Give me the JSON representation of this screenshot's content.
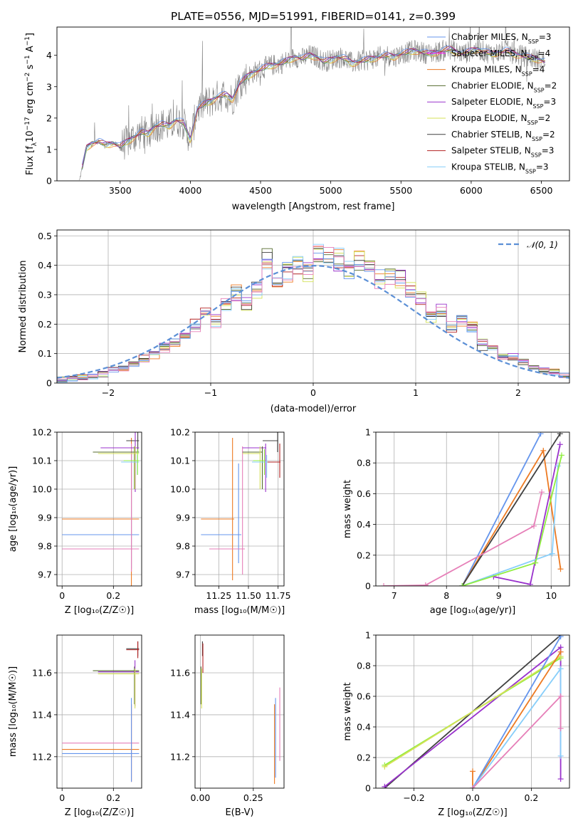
{
  "figure": {
    "title": "PLATE=0556, MJD=51991, FIBERID=0141, z=0.399",
    "series_colors": {
      "Chabrier MILES": "#6495ed",
      "Salpeter MILES": "#ff00ff",
      "Kroupa MILES": "#ed7a22",
      "Chabrier ELODIE": "#556b2f",
      "Salpeter ELODIE": "#9932cc",
      "Kroupa ELODIE": "#d4e157",
      "Chabrier STELIB": "#404040",
      "Salpeter STELIB": "#b22222",
      "Kroupa STELIB": "#87cefa",
      "data": "#808080",
      "gaussian": "#5b8fd6",
      "pink_extra": "#e67fb8",
      "lime_extra": "#90ee40"
    }
  },
  "chart_data": [
    {
      "id": "spectrum",
      "type": "line",
      "title": "PLATE=0556, MJD=51991, FIBERID=0141, z=0.399",
      "xlabel": "wavelength [Angstrom, rest frame]",
      "ylabel": "Flux [f_λ 10^-17 erg cm^-2 s^-1 A^-1]",
      "xlim": [
        3050,
        6700
      ],
      "ylim": [
        0,
        4.9
      ],
      "xticks": [
        3500,
        4000,
        4500,
        5000,
        5500,
        6000,
        6500
      ],
      "yticks": [
        0,
        1,
        2,
        3,
        4
      ],
      "grid": false,
      "legend_position": "top-right",
      "legend": [
        {
          "name": "Chabrier MILES",
          "nssp": "3"
        },
        {
          "name": "Salpeter MILES",
          "nssp": "4"
        },
        {
          "name": "Kroupa MILES",
          "nssp": "4"
        },
        {
          "name": "Chabrier ELODIE",
          "nssp": "2"
        },
        {
          "name": "Salpeter ELODIE",
          "nssp": "3"
        },
        {
          "name": "Kroupa ELODIE",
          "nssp": "2"
        },
        {
          "name": "Chabrier STELIB",
          "nssp": "2"
        },
        {
          "name": "Salpeter STELIB",
          "nssp": "3"
        },
        {
          "name": "Kroupa STELIB",
          "nssp": "3"
        }
      ],
      "continuum_x": [
        3210,
        3260,
        3300,
        3350,
        3400,
        3450,
        3500,
        3550,
        3600,
        3650,
        3700,
        3750,
        3800,
        3850,
        3900,
        3950,
        4000,
        4050,
        4100,
        4150,
        4200,
        4250,
        4300,
        4350,
        4400,
        4450,
        4500,
        4550,
        4600,
        4650,
        4700,
        4750,
        4800,
        4850,
        4900,
        4950,
        5000,
        5050,
        5100,
        5150,
        5200,
        5250,
        5300,
        5350,
        5400,
        5450,
        5500,
        5550,
        5600,
        5650,
        5700,
        5750,
        5800,
        5850,
        5900,
        5950,
        6000,
        6050,
        6100,
        6150,
        6200,
        6250,
        6300,
        6350,
        6400,
        6450,
        6500,
        6530
      ],
      "continuum_y": [
        0.0,
        1.05,
        1.2,
        1.25,
        1.15,
        1.2,
        1.1,
        1.25,
        1.4,
        1.55,
        1.5,
        1.75,
        1.8,
        1.75,
        1.95,
        1.85,
        1.3,
        2.3,
        2.45,
        2.55,
        2.7,
        2.75,
        2.6,
        3.1,
        3.3,
        3.45,
        3.55,
        3.65,
        3.7,
        3.75,
        3.85,
        3.95,
        3.9,
        4.0,
        3.95,
        3.8,
        3.85,
        3.95,
        3.9,
        3.75,
        3.8,
        3.85,
        3.9,
        3.95,
        4.0,
        3.95,
        4.05,
        4.1,
        4.15,
        4.1,
        4.05,
        4.1,
        4.15,
        4.2,
        4.1,
        4.05,
        4.15,
        4.2,
        4.1,
        4.05,
        4.1,
        4.15,
        4.05,
        4.0,
        3.95,
        3.9,
        3.85,
        3.8
      ]
    },
    {
      "id": "residuals",
      "type": "histogram",
      "xlabel": "(data-model)/error",
      "ylabel": "Normed distribution",
      "xlim": [
        -2.5,
        2.5
      ],
      "ylim": [
        0,
        0.52
      ],
      "xticks": [
        -2,
        -1,
        0,
        1,
        2
      ],
      "yticks": [
        0.0,
        0.1,
        0.2,
        0.3,
        0.4,
        0.5
      ],
      "grid": true,
      "legend_position": "top-right",
      "legend": [
        {
          "name": "𝒩(0, 1)",
          "style": "dashed"
        }
      ],
      "bin_edges": [
        -2.5,
        -2.4,
        -2.3,
        -2.2,
        -2.1,
        -2.0,
        -1.9,
        -1.8,
        -1.7,
        -1.6,
        -1.5,
        -1.4,
        -1.3,
        -1.2,
        -1.1,
        -1.0,
        -0.9,
        -0.8,
        -0.7,
        -0.6,
        -0.5,
        -0.4,
        -0.3,
        -0.2,
        -0.1,
        0.0,
        0.1,
        0.2,
        0.3,
        0.4,
        0.5,
        0.6,
        0.7,
        0.8,
        0.9,
        1.0,
        1.1,
        1.2,
        1.3,
        1.4,
        1.5,
        1.6,
        1.7,
        1.8,
        1.9,
        2.0,
        2.1,
        2.2,
        2.3,
        2.4,
        2.5
      ],
      "base_density": [
        0.012,
        0.015,
        0.02,
        0.025,
        0.03,
        0.045,
        0.05,
        0.065,
        0.08,
        0.1,
        0.12,
        0.14,
        0.16,
        0.2,
        0.24,
        0.21,
        0.26,
        0.3,
        0.26,
        0.32,
        0.42,
        0.34,
        0.38,
        0.4,
        0.37,
        0.45,
        0.43,
        0.42,
        0.38,
        0.41,
        0.39,
        0.35,
        0.37,
        0.35,
        0.31,
        0.28,
        0.23,
        0.24,
        0.19,
        0.21,
        0.19,
        0.13,
        0.12,
        0.09,
        0.09,
        0.07,
        0.055,
        0.045,
        0.035,
        0.025
      ],
      "curve": {
        "type": "normal",
        "mean": 0,
        "sigma": 1
      }
    },
    {
      "id": "age_vs_Z",
      "type": "errorbar",
      "xlabel": "Z [log₁₀(Z/Z☉)]",
      "ylabel": "age  [log₁₀(age/yr)]",
      "xlim": [
        -0.02,
        0.31
      ],
      "ylim": [
        9.66,
        10.2
      ],
      "xticks": [
        0.0,
        0.2
      ],
      "yticks": [
        9.7,
        9.8,
        9.9,
        10.0,
        10.1,
        10.2
      ],
      "ytick_labels": [
        "9.7",
        "9.8",
        "9.9",
        "10.0",
        "10.1",
        "10.2"
      ],
      "grid": true,
      "points": [
        {
          "series": "Kroupa MILES",
          "x": 0.0,
          "xerr": [
            0.0,
            0.3
          ],
          "y": 9.895,
          "yerr": [
            9.66,
            10.18
          ]
        },
        {
          "series": "Chabrier MILES",
          "x": 0.0,
          "xerr": [
            0.0,
            0.3
          ],
          "y": 9.84,
          "yerr": [
            9.72,
            10.15
          ]
        },
        {
          "series": "pink",
          "x": 0.0,
          "xerr": [
            0.0,
            0.3
          ],
          "y": 9.79,
          "yerr": [
            9.71,
            10.16
          ]
        },
        {
          "series": "Chabrier STELIB",
          "x": 0.25,
          "xerr": [
            0.25,
            0.3
          ],
          "y": 10.17,
          "yerr": [
            10.13,
            10.2
          ]
        },
        {
          "series": "Salpeter ELODIE",
          "x": 0.15,
          "xerr": [
            0.15,
            0.3
          ],
          "y": 10.145,
          "yerr": [
            9.99,
            10.2
          ]
        },
        {
          "series": "Chabrier ELODIE",
          "x": 0.12,
          "xerr": [
            0.12,
            0.3
          ],
          "y": 10.13,
          "yerr": [
            10.0,
            10.15
          ]
        },
        {
          "series": "Kroupa ELODIE",
          "x": 0.14,
          "xerr": [
            0.14,
            0.3
          ],
          "y": 10.125,
          "yerr": [
            10.0,
            10.15
          ]
        },
        {
          "series": "Kroupa STELIB",
          "x": 0.23,
          "xerr": [
            0.23,
            0.3
          ],
          "y": 10.095,
          "yerr": [
            10.05,
            10.12
          ]
        },
        {
          "series": "lime",
          "x": 0.24,
          "xerr": [
            0.24,
            0.3
          ],
          "y": 10.1,
          "yerr": [
            10.05,
            10.14
          ]
        }
      ]
    },
    {
      "id": "age_vs_mass",
      "type": "errorbar",
      "xlabel": "mass [log₁₀(M/M☉)]",
      "ylabel": "",
      "xlim": [
        11.05,
        11.8
      ],
      "ylim": [
        9.66,
        10.2
      ],
      "xticks": [
        11.25,
        11.5,
        11.75
      ],
      "xtick_labels": [
        "11.25",
        "11.50",
        "11.75"
      ],
      "yticks": [
        9.7,
        9.8,
        9.9,
        10.0,
        10.1,
        10.2
      ],
      "ytick_labels": [
        "9.7",
        "9.8",
        "9.9",
        "10.0",
        "10.1",
        "10.2"
      ],
      "grid": true,
      "points": [
        {
          "series": "Kroupa MILES",
          "x": 11.24,
          "xerr": [
            11.1,
            11.38
          ],
          "y": 9.895,
          "yerr": [
            9.68,
            10.18
          ]
        },
        {
          "series": "Chabrier MILES",
          "x": 11.21,
          "xerr": [
            11.1,
            11.44
          ],
          "y": 9.84,
          "yerr": [
            9.74,
            10.09
          ]
        },
        {
          "series": "pink",
          "x": 11.27,
          "xerr": [
            11.17,
            11.47
          ],
          "y": 9.79,
          "yerr": [
            9.7,
            10.15
          ]
        },
        {
          "series": "Chabrier STELIB",
          "x": 11.71,
          "xerr": [
            11.62,
            11.75
          ],
          "y": 10.17,
          "yerr": [
            10.13,
            10.2
          ]
        },
        {
          "series": "Salpeter STELIB",
          "x": 11.71,
          "xerr": [
            11.65,
            11.77
          ],
          "y": 10.095,
          "yerr": [
            10.04,
            10.16
          ]
        },
        {
          "series": "Salpeter ELODIE",
          "x": 11.6,
          "xerr": [
            11.45,
            11.65
          ],
          "y": 10.145,
          "yerr": [
            9.99,
            10.16
          ]
        },
        {
          "series": "Chabrier ELODIE",
          "x": 11.59,
          "xerr": [
            11.45,
            11.62
          ],
          "y": 10.13,
          "yerr": [
            10.0,
            10.15
          ]
        },
        {
          "series": "Kroupa ELODIE",
          "x": 11.58,
          "xerr": [
            11.45,
            11.6
          ],
          "y": 10.125,
          "yerr": [
            10.0,
            10.15
          ]
        },
        {
          "series": "Kroupa STELIB",
          "x": 11.6,
          "xerr": [
            11.53,
            11.66
          ],
          "y": 10.095,
          "yerr": [
            10.04,
            10.12
          ]
        },
        {
          "series": "lime",
          "x": 11.59,
          "xerr": [
            11.54,
            11.64
          ],
          "y": 10.1,
          "yerr": [
            10.05,
            10.14
          ]
        }
      ]
    },
    {
      "id": "weight_vs_age",
      "type": "line",
      "xlabel": "age  [log₁₀(age/yr)]",
      "ylabel": "mass weight",
      "xlim": [
        6.65,
        10.35
      ],
      "ylim": [
        0,
        1.0
      ],
      "xticks": [
        7,
        8,
        9,
        10
      ],
      "yticks": [
        0.0,
        0.2,
        0.4,
        0.6,
        0.8,
        1.0
      ],
      "grid": true,
      "series": [
        {
          "name": "Chabrier MILES",
          "x": [
            8.3,
            9.8
          ],
          "y": [
            0.0,
            0.99
          ]
        },
        {
          "name": "Kroupa MILES",
          "x": [
            8.3,
            9.85,
            10.18
          ],
          "y": [
            0.0,
            0.88,
            0.11
          ]
        },
        {
          "name": "Chabrier STELIB",
          "x": [
            8.3,
            10.17
          ],
          "y": [
            0.0,
            0.99
          ]
        },
        {
          "name": "Salpeter ELODIE",
          "x": [
            8.9,
            9.6,
            10.17
          ],
          "y": [
            0.06,
            0.01,
            0.92
          ]
        },
        {
          "name": "pink",
          "x": [
            6.8,
            7.6,
            9.67,
            9.82
          ],
          "y": [
            0.0,
            0.005,
            0.39,
            0.61
          ]
        },
        {
          "name": "Kroupa STELIB",
          "x": [
            8.3,
            10.02,
            10.13
          ],
          "y": [
            0.0,
            0.21,
            0.78
          ]
        },
        {
          "name": "lime",
          "x": [
            8.3,
            9.7,
            10.2
          ],
          "y": [
            0.0,
            0.15,
            0.85
          ]
        }
      ]
    },
    {
      "id": "mass_vs_Z",
      "type": "errorbar",
      "xlabel": "Z [log₁₀(Z/Z☉)]",
      "ylabel": "mass [log₁₀(M/M☉)]",
      "xlim": [
        -0.02,
        0.31
      ],
      "ylim": [
        11.05,
        11.78
      ],
      "xticks": [
        0.0,
        0.2
      ],
      "yticks": [
        11.2,
        11.4,
        11.6
      ],
      "grid": true,
      "points": [
        {
          "series": "Chabrier STELIB",
          "x": 0.25,
          "xerr": [
            0.25,
            0.3
          ],
          "y": 11.715,
          "yerr": [
            11.68,
            11.75
          ]
        },
        {
          "series": "Salpeter STELIB",
          "x": 0.25,
          "xerr": [
            0.25,
            0.3
          ],
          "y": 11.71,
          "yerr": [
            11.67,
            11.75
          ]
        },
        {
          "series": "Chabrier ELODIE",
          "x": 0.12,
          "xerr": [
            0.12,
            0.3
          ],
          "y": 11.61,
          "yerr": [
            11.45,
            11.63
          ]
        },
        {
          "series": "Salpeter ELODIE",
          "x": 0.14,
          "xerr": [
            0.14,
            0.3
          ],
          "y": 11.605,
          "yerr": [
            11.44,
            11.66
          ]
        },
        {
          "series": "Kroupa ELODIE",
          "x": 0.14,
          "xerr": [
            0.14,
            0.3
          ],
          "y": 11.595,
          "yerr": [
            11.43,
            11.62
          ]
        },
        {
          "series": "pink",
          "x": 0.0,
          "xerr": [
            0.0,
            0.3
          ],
          "y": 11.265,
          "yerr": [
            11.08,
            11.45
          ]
        },
        {
          "series": "Kroupa MILES",
          "x": 0.0,
          "xerr": [
            0.0,
            0.3
          ],
          "y": 11.235,
          "yerr": [
            11.08,
            11.45
          ]
        },
        {
          "series": "Chabrier MILES",
          "x": 0.0,
          "xerr": [
            0.0,
            0.3
          ],
          "y": 11.215,
          "yerr": [
            11.08,
            11.48
          ]
        }
      ]
    },
    {
      "id": "mass_vs_EBV",
      "type": "errorbar",
      "xlabel": "E(B-V)",
      "ylabel": "",
      "xlim": [
        -0.025,
        0.395
      ],
      "ylim": [
        11.05,
        11.78
      ],
      "xticks": [
        0.0,
        0.25
      ],
      "xtick_labels": [
        "0.00",
        "0.25"
      ],
      "yticks": [
        11.2,
        11.4,
        11.6
      ],
      "grid": true,
      "points": [
        {
          "series": "Chabrier STELIB",
          "x": 0.01,
          "y": 11.715,
          "yerr": [
            11.68,
            11.75
          ]
        },
        {
          "series": "Salpeter STELIB",
          "x": 0.012,
          "y": 11.71,
          "yerr": [
            11.6,
            11.74
          ]
        },
        {
          "series": "Chabrier ELODIE",
          "x": 0.003,
          "y": 11.6,
          "yerr": [
            11.45,
            11.63
          ]
        },
        {
          "series": "Kroupa ELODIE",
          "x": 0.006,
          "y": 11.58,
          "yerr": [
            11.43,
            11.62
          ]
        },
        {
          "series": "Kroupa MILES",
          "x": 0.35,
          "y": 11.235,
          "yerr": [
            11.07,
            11.45
          ]
        },
        {
          "series": "Chabrier MILES",
          "x": 0.355,
          "y": 11.215,
          "yerr": [
            11.1,
            11.48
          ]
        },
        {
          "series": "pink",
          "x": 0.375,
          "y": 11.265,
          "yerr": [
            11.18,
            11.53
          ]
        }
      ]
    },
    {
      "id": "weight_vs_Z",
      "type": "line",
      "xlabel": "Z [log₁₀(Z/Z☉)]",
      "ylabel": "mass weight",
      "xlim": [
        -0.33,
        0.33
      ],
      "ylim": [
        0,
        1.0
      ],
      "xticks": [
        -0.2,
        0.0,
        0.2
      ],
      "xtick_labels": [
        "−0.2",
        "0.0",
        "0.2"
      ],
      "yticks": [
        0.0,
        0.2,
        0.4,
        0.6,
        0.8,
        1.0
      ],
      "grid": true,
      "series": [
        {
          "name": "Chabrier STELIB",
          "x": [
            -0.3,
            0.3
          ],
          "y": [
            0.0,
            1.0
          ]
        },
        {
          "name": "Salpeter ELODIE",
          "x": [
            -0.3,
            0.3,
            0.3
          ],
          "y": [
            0.01,
            0.92,
            0.06
          ]
        },
        {
          "name": "lime",
          "x": [
            -0.3,
            0.3
          ],
          "y": [
            0.15,
            0.85
          ]
        },
        {
          "name": "Kroupa ELODIE",
          "x": [
            -0.3,
            0.3
          ],
          "y": [
            0.14,
            0.86
          ]
        },
        {
          "name": "Kroupa MILES",
          "x": [
            0.0,
            0.0,
            0.3
          ],
          "y": [
            0.11,
            0.0,
            0.89
          ]
        },
        {
          "name": "Chabrier MILES",
          "x": [
            0.0,
            0.3
          ],
          "y": [
            0.0,
            0.99
          ]
        },
        {
          "name": "Kroupa STELIB",
          "x": [
            0.0,
            0.3,
            0.3
          ],
          "y": [
            0.0,
            0.78,
            0.21
          ]
        },
        {
          "name": "pink",
          "x": [
            0.0,
            0.3,
            0.3
          ],
          "y": [
            0.0,
            0.6,
            0.39
          ]
        }
      ]
    }
  ]
}
